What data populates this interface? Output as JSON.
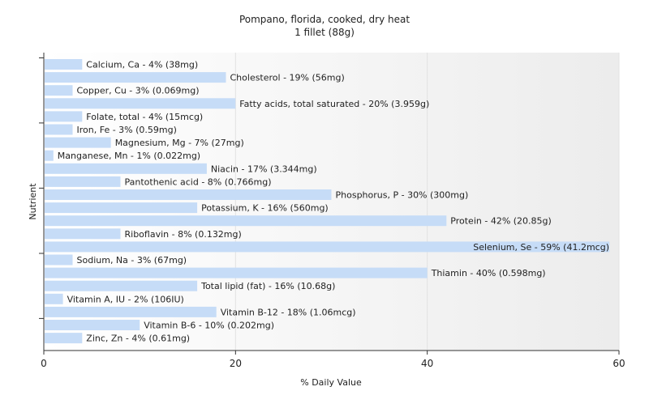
{
  "chart_data": {
    "type": "bar",
    "orientation": "horizontal",
    "title": "Pompano, florida, cooked, dry heat",
    "subtitle": "1 fillet (88g)",
    "xlabel": "% Daily Value",
    "ylabel": "Nutrient",
    "xlim": [
      0,
      60
    ],
    "xticks": [
      0,
      20,
      40,
      60
    ],
    "grid": true,
    "bar_color": "#c6dcf7",
    "bars": [
      {
        "name": "Calcium, Ca",
        "value": 4,
        "label": "Calcium, Ca - 4% (38mg)"
      },
      {
        "name": "Cholesterol",
        "value": 19,
        "label": "Cholesterol - 19% (56mg)"
      },
      {
        "name": "Copper, Cu",
        "value": 3,
        "label": "Copper, Cu - 3% (0.069mg)"
      },
      {
        "name": "Fatty acids, total saturated",
        "value": 20,
        "label": "Fatty acids, total saturated - 20% (3.959g)"
      },
      {
        "name": "Folate, total",
        "value": 4,
        "label": "Folate, total - 4% (15mcg)"
      },
      {
        "name": "Iron, Fe",
        "value": 3,
        "label": "Iron, Fe - 3% (0.59mg)"
      },
      {
        "name": "Magnesium, Mg",
        "value": 7,
        "label": "Magnesium, Mg - 7% (27mg)"
      },
      {
        "name": "Manganese, Mn",
        "value": 1,
        "label": "Manganese, Mn - 1% (0.022mg)"
      },
      {
        "name": "Niacin",
        "value": 17,
        "label": "Niacin - 17% (3.344mg)"
      },
      {
        "name": "Pantothenic acid",
        "value": 8,
        "label": "Pantothenic acid - 8% (0.766mg)"
      },
      {
        "name": "Phosphorus, P",
        "value": 30,
        "label": "Phosphorus, P - 30% (300mg)"
      },
      {
        "name": "Potassium, K",
        "value": 16,
        "label": "Potassium, K - 16% (560mg)"
      },
      {
        "name": "Protein",
        "value": 42,
        "label": "Protein - 42% (20.85g)"
      },
      {
        "name": "Riboflavin",
        "value": 8,
        "label": "Riboflavin - 8% (0.132mg)"
      },
      {
        "name": "Selenium, Se",
        "value": 59,
        "label": "Selenium, Se - 59% (41.2mcg)"
      },
      {
        "name": "Sodium, Na",
        "value": 3,
        "label": "Sodium, Na - 3% (67mg)"
      },
      {
        "name": "Thiamin",
        "value": 40,
        "label": "Thiamin - 40% (0.598mg)"
      },
      {
        "name": "Total lipid (fat)",
        "value": 16,
        "label": "Total lipid (fat) - 16% (10.68g)"
      },
      {
        "name": "Vitamin A, IU",
        "value": 2,
        "label": "Vitamin A, IU - 2% (106IU)"
      },
      {
        "name": "Vitamin B-12",
        "value": 18,
        "label": "Vitamin B-12 - 18% (1.06mcg)"
      },
      {
        "name": "Vitamin B-6",
        "value": 10,
        "label": "Vitamin B-6 - 10% (0.202mg)"
      },
      {
        "name": "Zinc, Zn",
        "value": 4,
        "label": "Zinc, Zn - 4% (0.61mg)"
      }
    ]
  }
}
